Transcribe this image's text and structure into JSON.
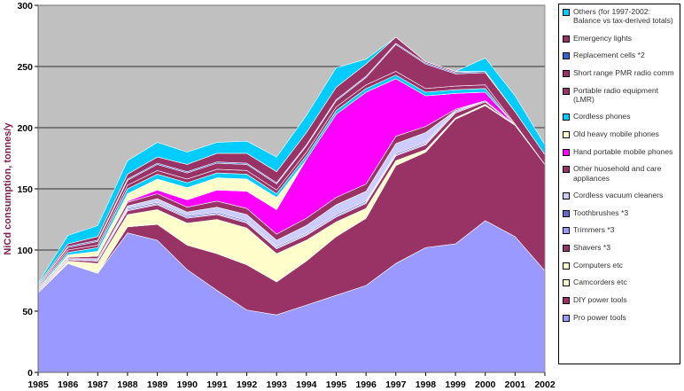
{
  "chart_data": {
    "type": "area",
    "stacked": true,
    "ylabel": "NiCd consumption, tonnes/y",
    "xlabel": "",
    "ylim": [
      0,
      300
    ],
    "yticks": [
      0,
      50,
      100,
      150,
      200,
      250,
      300
    ],
    "x": [
      "1985",
      "1986",
      "1987",
      "1988",
      "1989",
      "1990",
      "1991",
      "1992",
      "1993",
      "1994",
      "1995",
      "1996",
      "1997",
      "1998",
      "1999",
      "2000",
      "2001",
      "2002"
    ],
    "grid": "horizontal",
    "plot_background": "#c0c0c0",
    "legend_position": "right",
    "series": [
      {
        "name": "Pro power tools",
        "color": "#9999ff",
        "values": [
          65,
          89,
          81,
          114,
          108,
          84,
          67,
          51,
          47,
          55,
          63,
          71,
          89,
          102,
          105,
          124,
          111,
          83
        ]
      },
      {
        "name": "DIY power tools",
        "color": "#993366",
        "values": [
          0,
          0,
          0,
          5,
          13,
          20,
          30,
          37,
          27,
          36,
          48,
          55,
          80,
          78,
          102,
          94,
          91,
          87
        ]
      },
      {
        "name": "Camcorders etc",
        "color": "#ffffcc",
        "values": [
          0,
          0,
          2,
          0,
          0,
          0,
          0,
          0,
          0,
          0,
          0,
          0,
          0,
          0,
          0,
          0,
          0,
          0
        ]
      },
      {
        "name": "Computers etc",
        "color": "#ffffcc",
        "values": [
          0,
          2,
          6,
          10,
          12,
          18,
          28,
          30,
          23,
          17,
          12,
          8,
          4,
          2,
          1,
          1,
          0,
          0
        ]
      },
      {
        "name": "Shavers *3",
        "color": "#993366",
        "values": [
          1,
          1,
          2,
          3,
          4,
          4,
          4,
          4,
          4,
          4,
          4,
          4,
          4,
          4,
          4,
          2,
          0,
          0
        ]
      },
      {
        "name": "Trimmers *3",
        "color": "#9999ff",
        "values": [
          0,
          0,
          0,
          1,
          1,
          1,
          1,
          1,
          1,
          1,
          1,
          1,
          1,
          1,
          1,
          1,
          0,
          0
        ]
      },
      {
        "name": "Toothbrushes *3",
        "color": "#6666cc",
        "values": [
          0,
          0,
          0,
          1,
          1,
          1,
          1,
          1,
          1,
          1,
          1,
          1,
          1,
          1,
          1,
          0,
          0,
          0
        ]
      },
      {
        "name": "Cordless vacuum cleaners",
        "color": "#ccccff",
        "values": [
          1,
          1,
          2,
          2,
          3,
          3,
          4,
          5,
          5,
          6,
          8,
          8,
          8,
          8,
          0,
          0,
          0,
          0
        ]
      },
      {
        "name": "Other huosehold and care appliances",
        "color": "#993366",
        "values": [
          1,
          1,
          2,
          3,
          4,
          4,
          5,
          5,
          5,
          6,
          6,
          6,
          6,
          5,
          1,
          0,
          0,
          0
        ]
      },
      {
        "name": "Hand portable mobile phones",
        "color": "#ff00ff",
        "values": [
          0,
          0,
          0,
          1,
          3,
          6,
          9,
          14,
          20,
          48,
          68,
          75,
          47,
          25,
          13,
          7,
          0,
          0
        ]
      },
      {
        "name": "Old heavy mobile phones",
        "color": "#ffffcc",
        "values": [
          0,
          2,
          4,
          6,
          9,
          10,
          10,
          10,
          10,
          0,
          0,
          0,
          0,
          0,
          0,
          0,
          0,
          0
        ]
      },
      {
        "name": "Cordless phones",
        "color": "#00ccff",
        "values": [
          1,
          2,
          3,
          4,
          4,
          4,
          4,
          4,
          3,
          3,
          3,
          3,
          3,
          3,
          3,
          3,
          0,
          0
        ]
      },
      {
        "name": "Portable radio equipment (LMR)",
        "color": "#993366",
        "values": [
          1,
          2,
          2,
          3,
          3,
          3,
          3,
          3,
          3,
          3,
          3,
          3,
          3,
          3,
          3,
          3,
          1,
          0
        ]
      },
      {
        "name": "Short range PMR radio comm",
        "color": "#993366",
        "values": [
          1,
          2,
          3,
          4,
          5,
          5,
          5,
          5,
          5,
          5,
          5,
          6,
          22,
          20,
          10,
          10,
          10,
          8
        ]
      },
      {
        "name": "Replacement cells *2",
        "color": "#3366cc",
        "values": [
          0,
          1,
          1,
          1,
          1,
          1,
          1,
          1,
          1,
          1,
          1,
          1,
          1,
          1,
          1,
          1,
          0,
          0
        ]
      },
      {
        "name": "Emergency lights",
        "color": "#993366",
        "values": [
          1,
          2,
          3,
          4,
          5,
          6,
          7,
          8,
          9,
          10,
          10,
          10,
          5,
          1,
          1,
          0,
          0,
          0
        ]
      },
      {
        "name": "Others (for 1997-2002: Balance vs tax-derived totals)",
        "color": "#00ccff",
        "values": [
          1,
          7,
          9,
          11,
          12,
          10,
          9,
          10,
          12,
          14,
          16,
          4,
          0,
          0,
          0,
          11,
          13,
          8
        ]
      }
    ]
  }
}
